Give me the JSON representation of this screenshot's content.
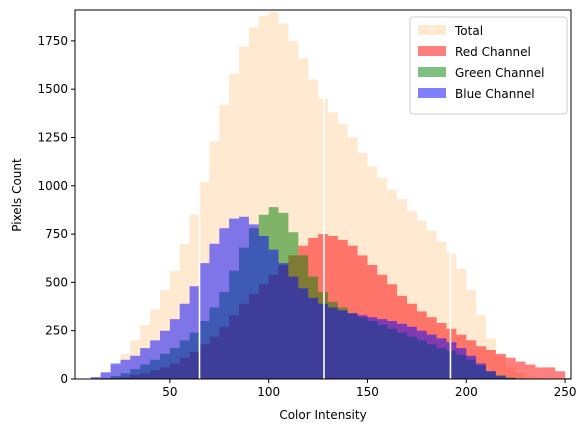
{
  "chart_data": {
    "type": "area",
    "title": "",
    "xlabel": "Color Intensity",
    "ylabel": "Pixels Count",
    "xlim": [
      2,
      253
    ],
    "ylim": [
      0,
      1910
    ],
    "x_ticks": [
      50,
      100,
      150,
      200,
      250
    ],
    "y_ticks": [
      0,
      250,
      500,
      750,
      1000,
      1250,
      1500,
      1750
    ],
    "legend_position": "top-right",
    "grid": false,
    "series": [
      {
        "name": "Total",
        "color": "#ffdab0",
        "opacity": 0.6,
        "x": [
          5,
          10,
          15,
          20,
          25,
          30,
          35,
          40,
          45,
          50,
          55,
          60,
          65,
          70,
          75,
          80,
          85,
          90,
          95,
          100,
          105,
          110,
          115,
          120,
          125,
          130,
          135,
          140,
          145,
          150,
          155,
          160,
          165,
          170,
          175,
          180,
          185,
          190,
          195,
          200,
          205,
          210,
          215,
          220,
          225,
          230,
          235,
          240,
          245,
          250,
          253
        ],
        "values": [
          0,
          10,
          30,
          70,
          130,
          200,
          280,
          360,
          460,
          560,
          700,
          850,
          1020,
          1230,
          1420,
          1580,
          1720,
          1820,
          1880,
          1900,
          1840,
          1750,
          1660,
          1550,
          1450,
          1380,
          1320,
          1250,
          1170,
          1100,
          1040,
          980,
          930,
          870,
          820,
          770,
          710,
          650,
          570,
          460,
          330,
          210,
          120,
          60,
          30,
          12,
          5,
          2,
          0,
          0,
          0
        ]
      },
      {
        "name": "Red Channel",
        "color": "#ff0000",
        "opacity": 0.5,
        "x": [
          5,
          10,
          15,
          20,
          25,
          30,
          35,
          40,
          45,
          50,
          55,
          60,
          65,
          70,
          75,
          80,
          85,
          90,
          95,
          100,
          105,
          110,
          115,
          120,
          125,
          130,
          135,
          140,
          145,
          150,
          155,
          160,
          165,
          170,
          175,
          180,
          185,
          190,
          195,
          200,
          205,
          210,
          215,
          220,
          225,
          230,
          235,
          240,
          245,
          250,
          253
        ],
        "values": [
          0,
          0,
          2,
          5,
          10,
          20,
          30,
          45,
          60,
          80,
          110,
          140,
          180,
          220,
          270,
          330,
          390,
          440,
          490,
          540,
          590,
          640,
          690,
          730,
          750,
          740,
          720,
          690,
          640,
          590,
          540,
          490,
          430,
          390,
          350,
          320,
          290,
          260,
          230,
          200,
          170,
          150,
          130,
          110,
          90,
          75,
          60,
          60,
          40,
          5,
          0
        ]
      },
      {
        "name": "Green Channel",
        "color": "#008000",
        "opacity": 0.5,
        "x": [
          5,
          10,
          15,
          20,
          25,
          30,
          35,
          40,
          45,
          50,
          55,
          60,
          65,
          70,
          75,
          80,
          85,
          90,
          95,
          100,
          105,
          110,
          115,
          120,
          125,
          130,
          135,
          140,
          145,
          150,
          155,
          160,
          165,
          170,
          175,
          180,
          185,
          190,
          195,
          200,
          205,
          210,
          215,
          220,
          225,
          230,
          235,
          240,
          245,
          250,
          253
        ],
        "values": [
          0,
          2,
          5,
          15,
          30,
          50,
          75,
          100,
          130,
          160,
          200,
          240,
          300,
          370,
          450,
          560,
          680,
          780,
          850,
          890,
          860,
          760,
          640,
          530,
          450,
          400,
          370,
          340,
          320,
          300,
          280,
          260,
          240,
          220,
          200,
          180,
          160,
          145,
          125,
          100,
          70,
          40,
          20,
          8,
          3,
          0,
          0,
          0,
          0,
          0,
          0
        ]
      },
      {
        "name": "Blue Channel",
        "color": "#0000ff",
        "opacity": 0.5,
        "x": [
          5,
          10,
          15,
          20,
          25,
          30,
          35,
          40,
          45,
          50,
          55,
          60,
          65,
          70,
          75,
          80,
          85,
          90,
          95,
          100,
          105,
          110,
          115,
          120,
          125,
          130,
          135,
          140,
          145,
          150,
          155,
          160,
          165,
          170,
          175,
          180,
          185,
          190,
          195,
          200,
          205,
          210,
          215,
          220,
          225,
          230,
          235,
          240,
          245,
          250,
          253
        ],
        "values": [
          0,
          10,
          35,
          80,
          100,
          120,
          160,
          200,
          250,
          310,
          390,
          480,
          600,
          700,
          780,
          830,
          840,
          800,
          740,
          670,
          600,
          530,
          470,
          420,
          390,
          370,
          355,
          340,
          330,
          320,
          310,
          300,
          285,
          270,
          250,
          230,
          210,
          190,
          160,
          120,
          80,
          40,
          15,
          5,
          0,
          0,
          0,
          0,
          0,
          0,
          0
        ]
      }
    ],
    "gaps_x": [
      65,
      128,
      192
    ]
  }
}
